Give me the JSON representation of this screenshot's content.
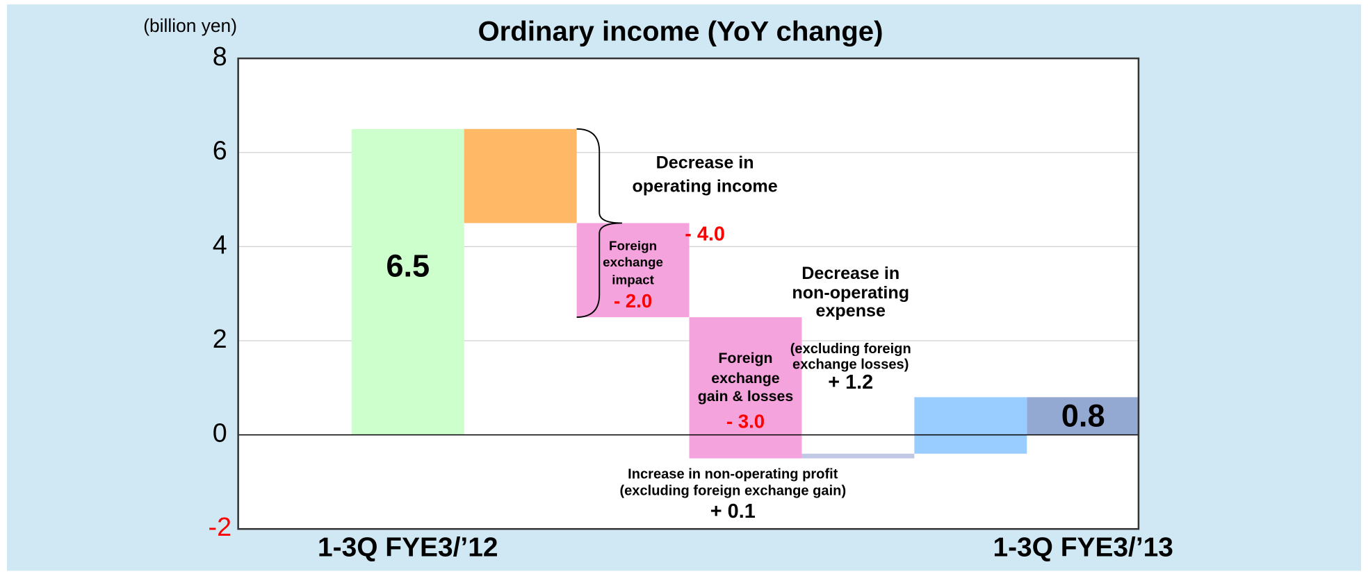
{
  "chart_data": {
    "type": "waterfall",
    "title": "Ordinary income (YoY change)",
    "y_label": "(billion yen)",
    "categories": [
      "1-3Q FYE3/’12",
      null,
      null,
      null,
      null,
      null,
      "1-3Q FYE3/’13"
    ],
    "measure": [
      "absolute",
      "relative",
      "relative",
      "relative",
      "relative",
      "relative",
      "absolute"
    ],
    "values": [
      6.5,
      -2,
      -2,
      -3,
      0.1,
      1.2,
      0.8
    ],
    "value_labels": [
      "6.5",
      null,
      "- 2.0",
      "- 3.0",
      "+ 0.1",
      "+ 1.2",
      "0.8"
    ],
    "colors": [
      "#ccffcc",
      "#ffb866",
      "#f5a3dc",
      "#f5a3dc",
      "#c0c8e4",
      "#99ccff",
      "#94a9d2"
    ],
    "bar_labels": [
      null,
      null,
      [
        "Foreign",
        "exchange",
        "impact"
      ],
      [
        "Foreign",
        "exchange",
        "gain & losses"
      ],
      [
        "Increase in non-operating profit",
        "(excluding foreign exchange gain)"
      ],
      [
        "Decrease in",
        "non-operating",
        "expense"
      ],
      null
    ],
    "bar_notes": [
      null,
      null,
      null,
      null,
      null,
      [
        "(excluding foreign",
        "exchange losses)"
      ],
      null
    ],
    "bracket": {
      "lines": [
        "Decrease in",
        "operating income"
      ],
      "value": -4,
      "value_label": "- 4.0"
    },
    "ylim": [
      -2,
      8
    ],
    "yticks": [
      -2,
      0,
      2,
      4,
      6,
      8
    ],
    "ytick_colors": [
      "#ff0000",
      "#000000",
      "#000000",
      "#000000",
      "#000000",
      "#000000"
    ],
    "grid": true
  }
}
